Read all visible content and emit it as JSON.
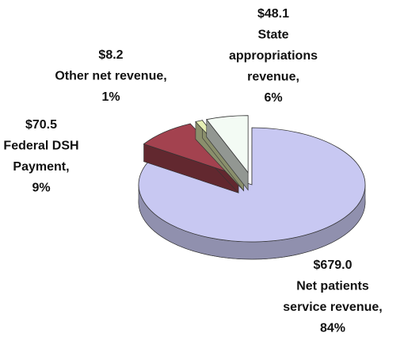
{
  "chart_data": {
    "type": "pie3d",
    "categories": [
      [
        "Net patients",
        "service revenue,"
      ],
      [
        "Federal DSH",
        "Payment,"
      ],
      [
        "Other net revenue,"
      ],
      [
        "State",
        "appropriations",
        "revenue,"
      ]
    ],
    "values": [
      679.0,
      70.5,
      8.2,
      48.1
    ],
    "value_labels": [
      "$679.0",
      "$70.5",
      "$8.2",
      "$48.1"
    ],
    "percent_labels": [
      "84%",
      "9%",
      "1%",
      "6%"
    ],
    "colors": [
      "#c8c8f2",
      "#a3424f",
      "#e6efb4",
      "#f3fbf4"
    ]
  }
}
